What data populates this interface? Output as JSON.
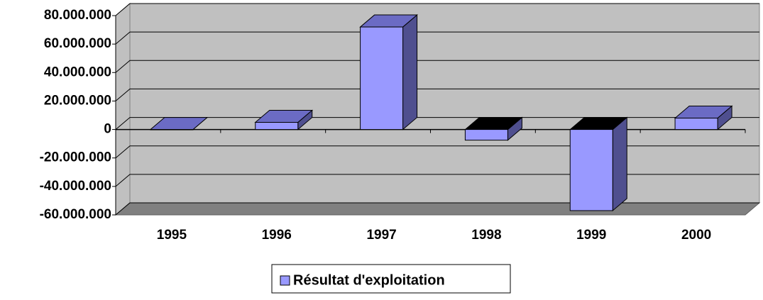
{
  "chart_data": {
    "type": "bar",
    "categories": [
      "1995",
      "1996",
      "1997",
      "1998",
      "1999",
      "2000"
    ],
    "series": [
      {
        "name": "Résultat d'exploitation",
        "color": "#9999ff",
        "values": [
          0,
          5000000,
          72000000,
          -7500000,
          -57000000,
          8000000
        ]
      }
    ],
    "ylim": [
      -60000000,
      80000000
    ],
    "yticks": [
      {
        "value": -60000000,
        "label": "-60.000.000"
      },
      {
        "value": -40000000,
        "label": "-40.000.000"
      },
      {
        "value": -20000000,
        "label": "-20.000.000"
      },
      0,
      {
        "value": 20000000,
        "label": "20.000.000"
      },
      {
        "value": 40000000,
        "label": "40.000.000"
      },
      {
        "value": 60000000,
        "label": "60.000.000"
      },
      {
        "value": 80000000,
        "label": "80.000.000"
      }
    ],
    "grid": true,
    "legend": "bottom"
  }
}
